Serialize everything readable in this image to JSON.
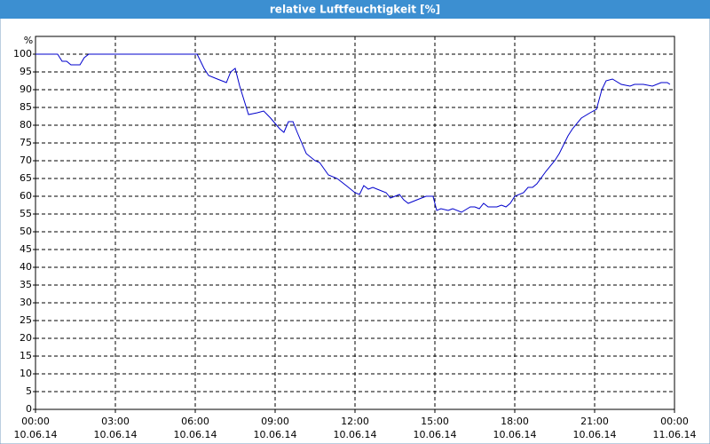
{
  "chart_data": {
    "type": "line",
    "title": "relative Luftfeuchtigkeit [%]",
    "y_label": "%",
    "grid": true,
    "xlim": [
      0,
      24
    ],
    "ylim": [
      0,
      100
    ],
    "yticks": [
      0,
      5,
      10,
      15,
      20,
      25,
      30,
      35,
      40,
      45,
      50,
      55,
      60,
      65,
      70,
      75,
      80,
      85,
      90,
      95,
      100
    ],
    "xticks": [
      {
        "value": 0,
        "label": "00:00"
      },
      {
        "value": 3,
        "label": "03:00"
      },
      {
        "value": 6,
        "label": "06:00"
      },
      {
        "value": 9,
        "label": "09:00"
      },
      {
        "value": 12,
        "label": "12:00"
      },
      {
        "value": 15,
        "label": "15:00"
      },
      {
        "value": 18,
        "label": "18:00"
      },
      {
        "value": 21,
        "label": "21:00"
      },
      {
        "value": 24,
        "label": "00:00"
      }
    ],
    "xtick_dates": [
      "10.06.14",
      "10.06.14",
      "10.06.14",
      "10.06.14",
      "10.06.14",
      "10.06.14",
      "10.06.14",
      "10.06.14",
      "11.06.14"
    ],
    "x": [
      0,
      0.83,
      1.0,
      1.17,
      1.33,
      1.67,
      1.83,
      2.0,
      6.07,
      6.33,
      6.5,
      6.83,
      7.17,
      7.33,
      7.5,
      7.67,
      8.0,
      8.33,
      8.57,
      8.83,
      9.17,
      9.33,
      9.5,
      9.67,
      9.83,
      10.17,
      10.5,
      10.67,
      11.0,
      11.33,
      11.67,
      12.0,
      12.17,
      12.33,
      12.5,
      12.67,
      12.83,
      13.17,
      13.33,
      13.67,
      13.83,
      14.0,
      14.33,
      14.67,
      14.93,
      15.07,
      15.23,
      15.5,
      15.67,
      16.0,
      16.33,
      16.5,
      16.67,
      16.83,
      17.0,
      17.33,
      17.5,
      17.67,
      17.83,
      18.0,
      18.33,
      18.5,
      18.67,
      18.83,
      19.17,
      19.5,
      19.67,
      20.0,
      20.17,
      20.5,
      20.83,
      21.07,
      21.27,
      21.43,
      21.67,
      22.0,
      22.33,
      22.5,
      22.83,
      23.17,
      23.5,
      23.73,
      23.83
    ],
    "series": [
      {
        "name": "relative Luftfeuchtigkeit",
        "color": "#0000cc",
        "values": [
          100,
          100,
          98,
          98,
          97,
          97,
          99,
          100,
          100,
          96,
          94,
          93,
          92,
          95,
          96,
          91,
          83,
          83.5,
          84,
          82,
          79,
          78,
          81,
          81,
          78,
          72,
          70,
          69.5,
          66,
          65,
          63,
          61,
          60.5,
          63,
          62,
          62.5,
          62,
          61,
          59.5,
          60.5,
          59,
          58,
          59,
          60,
          60,
          56,
          56.5,
          56,
          56.5,
          55.5,
          57,
          57,
          56.5,
          58,
          57,
          57,
          57.5,
          57,
          58,
          60,
          61,
          62.5,
          62.5,
          63.5,
          67,
          70,
          72,
          77,
          79,
          82,
          83.5,
          84.5,
          90,
          92.5,
          93,
          91.5,
          91,
          91.5,
          91.5,
          91,
          92,
          92,
          91.5
        ]
      }
    ]
  }
}
